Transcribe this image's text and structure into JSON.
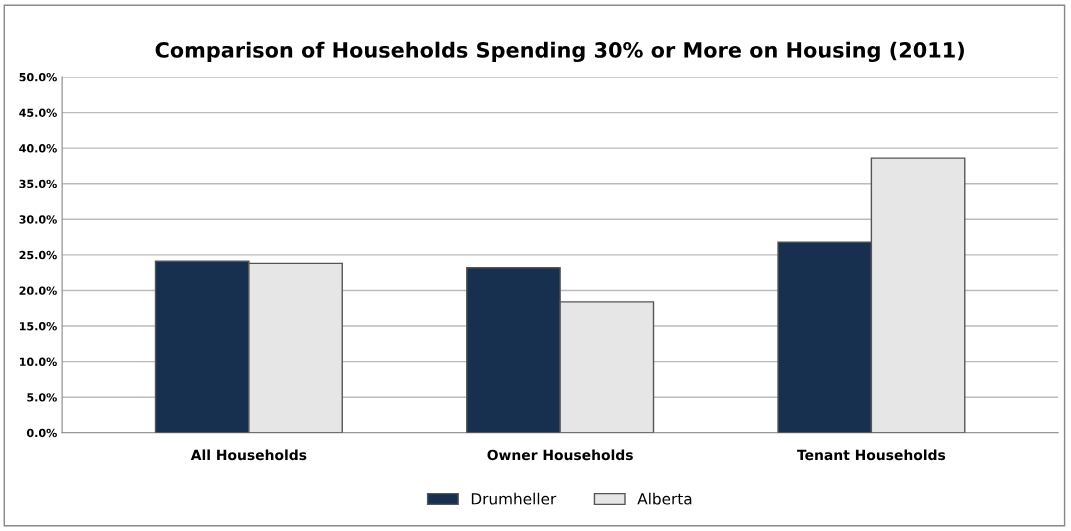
{
  "chart_data": {
    "type": "bar",
    "title": "Comparison of Households Spending 30% or More on Housing (2011)",
    "categories": [
      "All Households",
      "Owner Households",
      "Tenant Households"
    ],
    "series": [
      {
        "name": "Drumheller",
        "color": "#17304f",
        "values": [
          24.1,
          23.2,
          26.8
        ]
      },
      {
        "name": "Alberta",
        "color": "#e6e6e6",
        "values": [
          23.8,
          18.4,
          38.6
        ]
      }
    ],
    "ylim": [
      0,
      50
    ],
    "yticks": [
      {
        "value": 0,
        "label": "0.0%"
      },
      {
        "value": 5,
        "label": "5.0%"
      },
      {
        "value": 10,
        "label": "10.0%"
      },
      {
        "value": 15,
        "label": "15.0%"
      },
      {
        "value": 20,
        "label": "20.0%"
      },
      {
        "value": 25,
        "label": "25.0%"
      },
      {
        "value": 30,
        "label": "30.0%"
      },
      {
        "value": 35,
        "label": "35.0%"
      },
      {
        "value": 40,
        "label": "40.0%"
      },
      {
        "value": 45,
        "label": "45.0%"
      },
      {
        "value": 50,
        "label": "50.0%"
      }
    ],
    "grid": "y",
    "legend": "bottom"
  }
}
